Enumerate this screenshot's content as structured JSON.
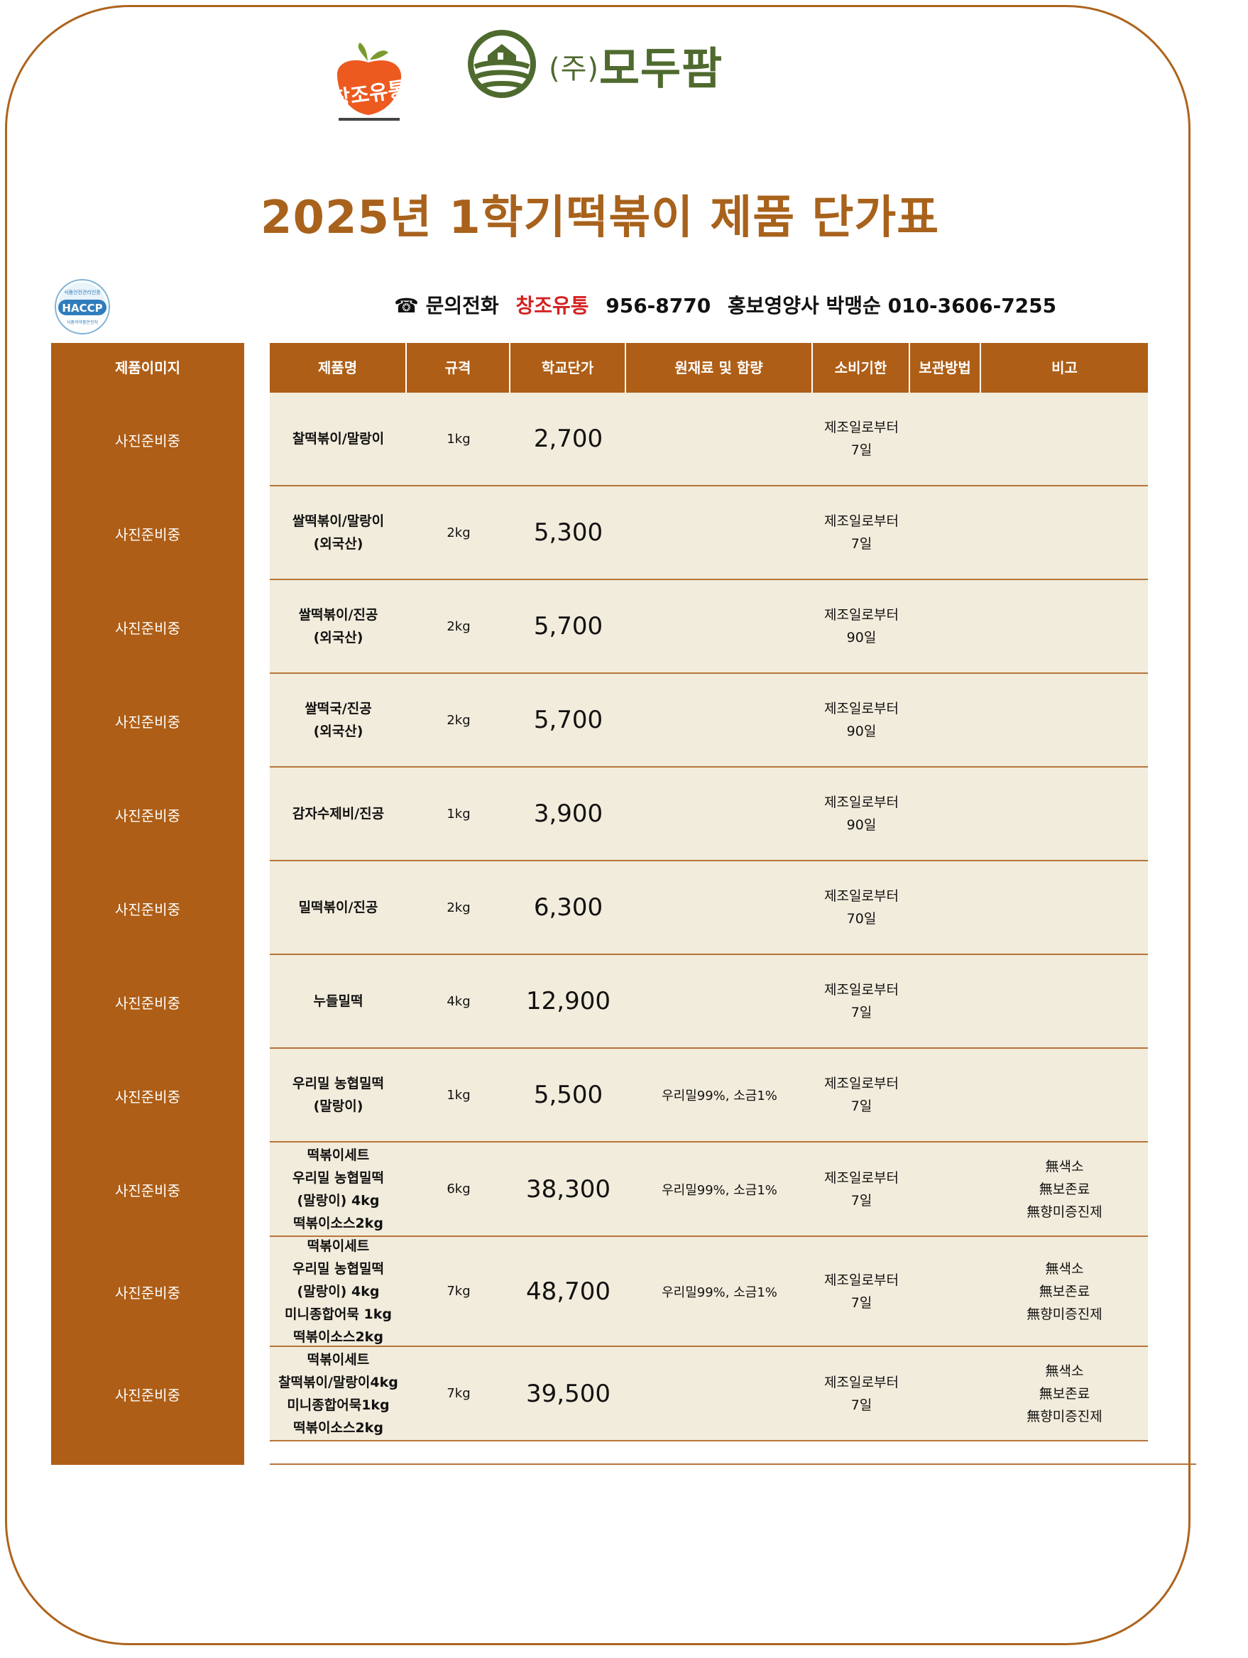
{
  "logos": {
    "changjo": "창조유통",
    "modupam": "모두팜",
    "modupam_prefix": "(주)",
    "haccp": "HACCP",
    "haccp_top": "식품안전관리인증",
    "haccp_bottom": "식품의약품안전처"
  },
  "title": "2025년 1학기떡볶이 제품 단가표",
  "contact": {
    "icon": "☎",
    "label": "문의전화",
    "company": "창조유통",
    "phone": "956-8770",
    "rep_label": "홍보영양사 박맹순",
    "rep_phone": "010-3606-7255"
  },
  "colors": {
    "accent": "#ae5e16",
    "row_bg": "#f2ecdc",
    "title": "#a8621c",
    "company_red": "#d32222",
    "logo_green": "#4f6a2e"
  },
  "image_column": {
    "header": "제품이미지"
  },
  "headers": [
    "제품명",
    "규격",
    "학교단가",
    "원재료 및 함량",
    "소비기한",
    "보관방법",
    "비고"
  ],
  "rows": [
    {
      "image": "사진준비중",
      "name": "찰떡볶이/말랑이",
      "spec": "1kg",
      "price": "2,700",
      "ingredients": "",
      "expiry": "제조일로부터\n7일",
      "storage": "",
      "note": ""
    },
    {
      "image": "사진준비중",
      "name": "쌀떡볶이/말랑이\n(외국산)",
      "spec": "2kg",
      "price": "5,300",
      "ingredients": "",
      "expiry": "제조일로부터\n7일",
      "storage": "",
      "note": ""
    },
    {
      "image": "사진준비중",
      "name": "쌀떡볶이/진공\n(외국산)",
      "spec": "2kg",
      "price": "5,700",
      "ingredients": "",
      "expiry": "제조일로부터\n90일",
      "storage": "",
      "note": ""
    },
    {
      "image": "사진준비중",
      "name": "쌀떡국/진공\n(외국산)",
      "spec": "2kg",
      "price": "5,700",
      "ingredients": "",
      "expiry": "제조일로부터\n90일",
      "storage": "",
      "note": ""
    },
    {
      "image": "사진준비중",
      "name": "감자수제비/진공",
      "spec": "1kg",
      "price": "3,900",
      "ingredients": "",
      "expiry": "제조일로부터\n90일",
      "storage": "",
      "note": ""
    },
    {
      "image": "사진준비중",
      "name": "밀떡볶이/진공",
      "spec": "2kg",
      "price": "6,300",
      "ingredients": "",
      "expiry": "제조일로부터\n70일",
      "storage": "",
      "note": ""
    },
    {
      "image": "사진준비중",
      "name": "누들밀떡",
      "spec": "4kg",
      "price": "12,900",
      "ingredients": "",
      "expiry": "제조일로부터\n7일",
      "storage": "",
      "note": ""
    },
    {
      "image": "사진준비중",
      "name": "우리밀 농협밀떡\n(말랑이)",
      "spec": "1kg",
      "price": "5,500",
      "ingredients": "우리밀99%, 소금1%",
      "expiry": "제조일로부터\n7일",
      "storage": "",
      "note": ""
    },
    {
      "image": "사진준비중",
      "name": "떡볶이세트\n우리밀 농협밀떡\n(말랑이) 4kg\n떡볶이소스2kg",
      "spec": "6kg",
      "price": "38,300",
      "ingredients": "우리밀99%, 소금1%",
      "expiry": "제조일로부터\n7일",
      "storage": "",
      "note": "無색소\n無보존료\n無향미증진제"
    },
    {
      "image": "사진준비중",
      "name": "떡볶이세트\n우리밀 농협밀떡\n(말랑이) 4kg\n미니종합어묵 1kg\n떡볶이소스2kg",
      "spec": "7kg",
      "price": "48,700",
      "ingredients": "우리밀99%, 소금1%",
      "expiry": "제조일로부터\n7일",
      "storage": "",
      "note": "無색소\n無보존료\n無향미증진제"
    },
    {
      "image": "사진준비중",
      "name": "떡볶이세트\n찰떡볶이/말랑이4kg\n미니종합어묵1kg\n떡볶이소스2kg",
      "spec": "7kg",
      "price": "39,500",
      "ingredients": "",
      "expiry": "제조일로부터\n7일",
      "storage": "",
      "note": "無색소\n無보존료\n無향미증진제"
    }
  ]
}
